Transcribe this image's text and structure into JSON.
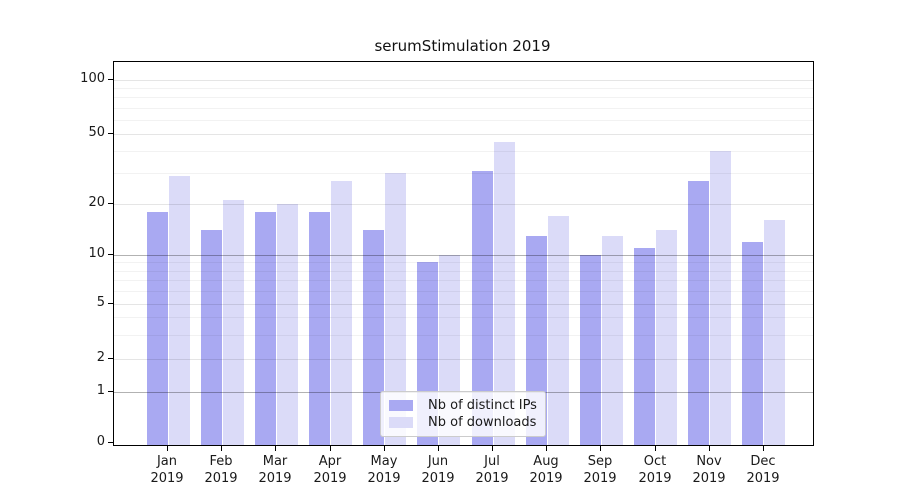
{
  "title": "serumStimulation 2019",
  "legend": {
    "items": [
      {
        "label": "Nb of distinct IPs",
        "series_key": "ips",
        "color": "#a9a9f2"
      },
      {
        "label": "Nb of downloads",
        "series_key": "downloads",
        "color": "#dbdbf8"
      }
    ]
  },
  "colors": {
    "bar_distinct_ips": "#a9a9f2",
    "bar_downloads": "#dbdbf8",
    "axis": "#000000",
    "background": "#ffffff",
    "text": "#1a1a1a"
  },
  "chart_data": {
    "type": "bar",
    "title": "serumStimulation 2019",
    "categories": [
      {
        "month": "Jan",
        "year": "2019"
      },
      {
        "month": "Feb",
        "year": "2019"
      },
      {
        "month": "Mar",
        "year": "2019"
      },
      {
        "month": "Apr",
        "year": "2019"
      },
      {
        "month": "May",
        "year": "2019"
      },
      {
        "month": "Jun",
        "year": "2019"
      },
      {
        "month": "Jul",
        "year": "2019"
      },
      {
        "month": "Aug",
        "year": "2019"
      },
      {
        "month": "Sep",
        "year": "2019"
      },
      {
        "month": "Oct",
        "year": "2019"
      },
      {
        "month": "Nov",
        "year": "2019"
      },
      {
        "month": "Dec",
        "year": "2019"
      }
    ],
    "series": [
      {
        "name": "Nb of distinct IPs",
        "color": "#a9a9f2",
        "values": [
          18,
          14,
          18,
          18,
          14,
          9,
          31,
          13,
          10,
          11,
          27,
          12
        ]
      },
      {
        "name": "Nb of downloads",
        "color": "#dbdbf8",
        "values": [
          29,
          21,
          20,
          27,
          30,
          10,
          45,
          17,
          13,
          14,
          40,
          16
        ]
      }
    ],
    "xlabel": "",
    "ylabel": "",
    "y_axis": {
      "scale": "log-like",
      "tick_values": [
        0,
        1,
        2,
        5,
        10,
        20,
        50,
        100
      ],
      "minor_gridline_values": [
        3,
        4,
        6,
        7,
        8,
        9,
        30,
        40,
        60,
        70,
        80,
        90
      ],
      "emphasized_gridline_values": [
        1,
        10
      ],
      "ylim": [
        0,
        125
      ]
    },
    "grid": true,
    "legend_position": "bottom-center"
  }
}
